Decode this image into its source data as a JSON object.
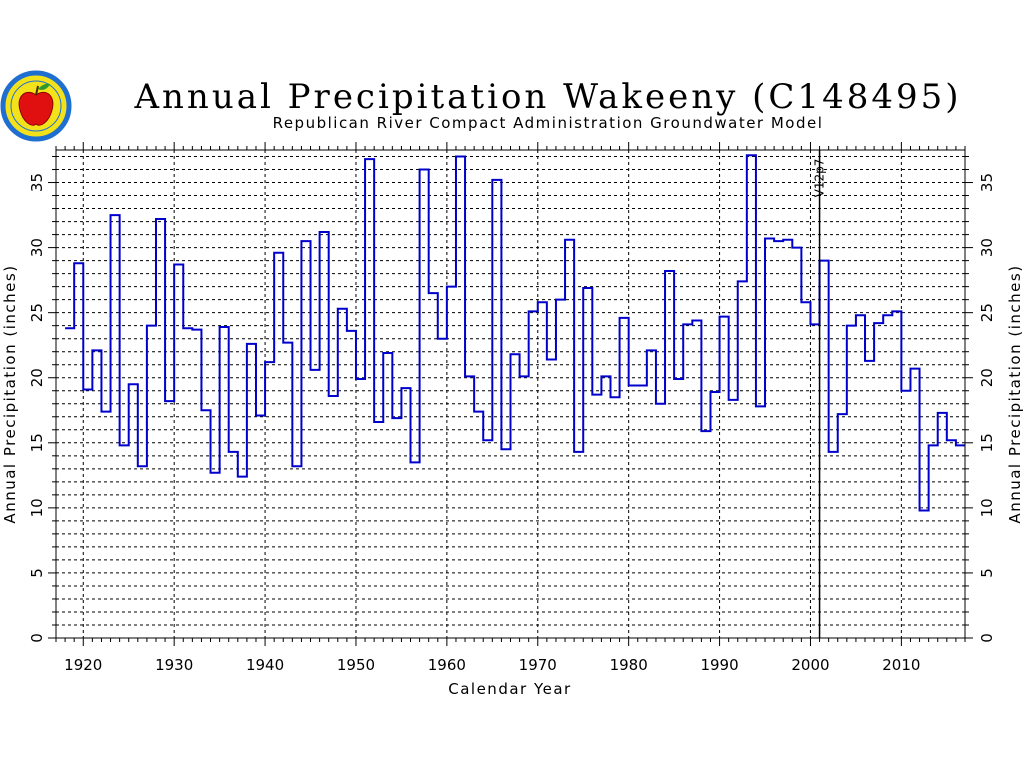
{
  "header": {
    "title": "Annual Precipitation Wakeeny (C148495)",
    "subtitle": "Republican River Compact Administration Groundwater Model"
  },
  "logo": {
    "icon": "apple-seal-icon",
    "colors": {
      "ring": "#1f6fd1",
      "fill": "#f3e21a",
      "apple": "#e01010"
    }
  },
  "chart_data": {
    "type": "line",
    "step": true,
    "x": [
      1918,
      1919,
      1920,
      1921,
      1922,
      1923,
      1924,
      1925,
      1926,
      1927,
      1928,
      1929,
      1930,
      1931,
      1932,
      1933,
      1934,
      1935,
      1936,
      1937,
      1938,
      1939,
      1940,
      1941,
      1942,
      1943,
      1944,
      1945,
      1946,
      1947,
      1948,
      1949,
      1950,
      1951,
      1952,
      1953,
      1954,
      1955,
      1956,
      1957,
      1958,
      1959,
      1960,
      1961,
      1962,
      1963,
      1964,
      1965,
      1966,
      1967,
      1968,
      1969,
      1970,
      1971,
      1972,
      1973,
      1974,
      1975,
      1976,
      1977,
      1978,
      1979,
      1980,
      1981,
      1982,
      1983,
      1984,
      1985,
      1986,
      1987,
      1988,
      1989,
      1990,
      1991,
      1992,
      1993,
      1994,
      1995,
      1996,
      1997,
      1998,
      1999,
      2000,
      2001,
      2002,
      2003,
      2004,
      2005,
      2006,
      2007,
      2008,
      2009,
      2010,
      2011,
      2012,
      2013,
      2014,
      2015,
      2016
    ],
    "series": [
      {
        "values": [
          23.8,
          28.8,
          19.1,
          22.1,
          17.4,
          32.5,
          14.8,
          19.5,
          13.2,
          24.0,
          32.2,
          18.2,
          28.7,
          23.8,
          23.7,
          17.5,
          12.7,
          23.9,
          14.3,
          12.4,
          22.6,
          17.1,
          21.2,
          29.6,
          22.7,
          13.2,
          30.5,
          20.6,
          31.2,
          18.6,
          25.3,
          23.6,
          19.9,
          36.8,
          16.6,
          21.9,
          16.9,
          19.2,
          13.5,
          36.0,
          26.5,
          23.0,
          27.0,
          37.0,
          20.1,
          17.4,
          15.2,
          35.2,
          14.5,
          21.8,
          20.1,
          25.1,
          25.8,
          21.4,
          26.0,
          30.6,
          14.3,
          26.9,
          18.7,
          20.1,
          18.5,
          24.6,
          19.4,
          19.4,
          22.1,
          18.0,
          28.2,
          19.9,
          24.1,
          24.4,
          15.9,
          18.9,
          24.7,
          18.3,
          27.4,
          37.1,
          17.8,
          30.7,
          30.5,
          30.6,
          30.0,
          25.8,
          24.1,
          29.0,
          14.3,
          17.2,
          24.0,
          24.8,
          21.3,
          24.2,
          24.8,
          25.1,
          19.0,
          20.7,
          9.8,
          14.8,
          17.3,
          15.2,
          14.8
        ],
        "color": "#0000cc"
      }
    ],
    "xlabel": "Calendar Year",
    "ylabel": "Annual Precipitation (inches)",
    "ylabel_right": "Annual Precipitation (inches)",
    "xlim": [
      1917,
      2017
    ],
    "ylim": [
      0,
      37.5
    ],
    "xticks": [
      1920,
      1930,
      1940,
      1950,
      1960,
      1970,
      1980,
      1990,
      2000,
      2010
    ],
    "yticks": [
      0,
      5,
      10,
      15,
      20,
      25,
      30,
      35
    ],
    "grid": true,
    "annotations": [
      {
        "x": 2001,
        "label": "V12p7",
        "style": "vertical-line"
      }
    ]
  }
}
